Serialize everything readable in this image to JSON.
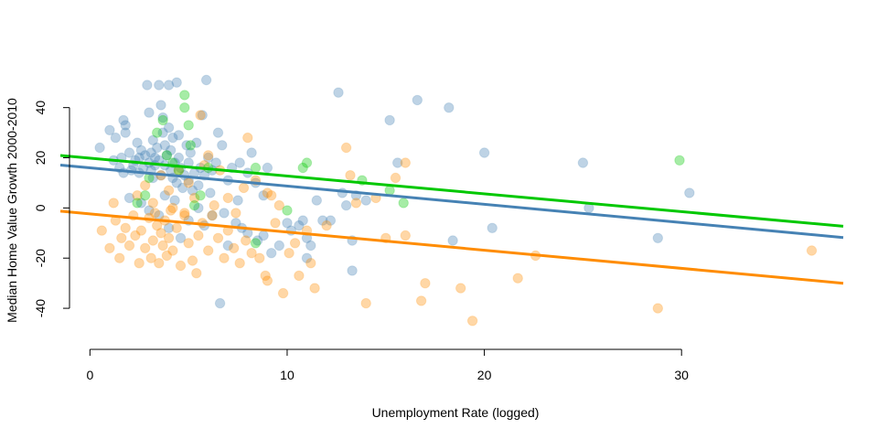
{
  "chart_data": {
    "type": "scatter",
    "title": "",
    "xlabel": "Unemployment Rate (logged)",
    "ylabel": "Median Home Value Growth 2000-2010",
    "xlim": [
      -1.5,
      38.2
    ],
    "ylim": [
      -52,
      53
    ],
    "xticks": [
      0,
      10,
      20,
      30
    ],
    "yticks": [
      -40,
      -20,
      0,
      20,
      40
    ],
    "grid": false,
    "legend": "none",
    "series": [
      {
        "color": "#4682b4",
        "marker_alpha": 0.35,
        "points": [
          [
            0.5,
            24
          ],
          [
            1,
            31
          ],
          [
            1.2,
            19
          ],
          [
            1.3,
            28
          ],
          [
            1.5,
            16
          ],
          [
            1.6,
            20
          ],
          [
            1.7,
            14
          ],
          [
            1.7,
            35
          ],
          [
            1.8,
            33
          ],
          [
            1.8,
            30
          ],
          [
            2,
            22
          ],
          [
            2.1,
            15
          ],
          [
            2.2,
            17
          ],
          [
            2.3,
            19
          ],
          [
            2.4,
            26
          ],
          [
            2.5,
            14
          ],
          [
            2.5,
            20
          ],
          [
            2.6,
            23
          ],
          [
            2.7,
            16
          ],
          [
            2.8,
            21
          ],
          [
            2.9,
            49
          ],
          [
            3,
            38
          ],
          [
            3,
            18
          ],
          [
            3.1,
            15
          ],
          [
            3.1,
            22
          ],
          [
            3.2,
            12
          ],
          [
            3.2,
            27
          ],
          [
            3.3,
            20
          ],
          [
            3.3,
            17
          ],
          [
            3.4,
            24
          ],
          [
            3.5,
            49
          ],
          [
            3.5,
            19
          ],
          [
            3.6,
            13
          ],
          [
            3.6,
            41
          ],
          [
            3.7,
            30
          ],
          [
            3.7,
            36
          ],
          [
            3.8,
            25
          ],
          [
            3.8,
            17
          ],
          [
            3.9,
            21
          ],
          [
            4,
            32
          ],
          [
            4,
            49
          ],
          [
            4.1,
            15
          ],
          [
            4.1,
            23
          ],
          [
            4.2,
            12
          ],
          [
            4.2,
            28
          ],
          [
            4.3,
            18
          ],
          [
            4.4,
            50
          ],
          [
            4.4,
            10
          ],
          [
            4.5,
            29
          ],
          [
            4.5,
            20
          ],
          [
            4.6,
            16
          ],
          [
            4.7,
            8
          ],
          [
            4.8,
            13
          ],
          [
            4.9,
            25
          ],
          [
            5,
            11
          ],
          [
            5,
            18
          ],
          [
            5.1,
            22
          ],
          [
            5.2,
            7
          ],
          [
            5.3,
            14
          ],
          [
            5.4,
            26
          ],
          [
            5.5,
            9
          ],
          [
            5.6,
            16
          ],
          [
            5.7,
            37
          ],
          [
            5.8,
            13
          ],
          [
            5.9,
            51
          ],
          [
            6,
            20
          ],
          [
            6.1,
            6
          ],
          [
            6.2,
            15
          ],
          [
            6.4,
            18
          ],
          [
            6.5,
            30
          ],
          [
            6.7,
            25
          ],
          [
            7,
            11
          ],
          [
            7.2,
            16
          ],
          [
            7.5,
            3
          ],
          [
            7.6,
            18
          ],
          [
            8,
            14
          ],
          [
            8.2,
            22
          ],
          [
            8.4,
            10
          ],
          [
            8.8,
            5
          ],
          [
            9,
            16
          ],
          [
            2,
            4
          ],
          [
            2.6,
            2
          ],
          [
            3,
            -1
          ],
          [
            3.5,
            -3
          ],
          [
            3.8,
            5
          ],
          [
            4,
            -8
          ],
          [
            4.3,
            3
          ],
          [
            4.6,
            -12
          ],
          [
            5,
            -5
          ],
          [
            5.5,
            0
          ],
          [
            5.8,
            -7
          ],
          [
            6.2,
            -3
          ],
          [
            6.6,
            -38
          ],
          [
            6.8,
            -2
          ],
          [
            7,
            -15
          ],
          [
            7.4,
            -6
          ],
          [
            7.7,
            -8
          ],
          [
            8,
            -10
          ],
          [
            8.5,
            -13
          ],
          [
            8.8,
            -11
          ],
          [
            9.2,
            -18
          ],
          [
            9.6,
            -15
          ],
          [
            10,
            -6
          ],
          [
            10.2,
            -9
          ],
          [
            10.6,
            -7
          ],
          [
            10.8,
            -5
          ],
          [
            11,
            -12
          ],
          [
            11,
            -20
          ],
          [
            11.2,
            -15
          ],
          [
            11.5,
            3
          ],
          [
            11.8,
            -5
          ],
          [
            12.2,
            -5
          ],
          [
            12.6,
            46
          ],
          [
            12.8,
            6
          ],
          [
            13,
            1
          ],
          [
            13.3,
            -13
          ],
          [
            13.3,
            -25
          ],
          [
            13.5,
            5
          ],
          [
            14,
            3
          ],
          [
            15.2,
            35
          ],
          [
            15.6,
            18
          ],
          [
            16.6,
            43
          ],
          [
            18.2,
            40
          ],
          [
            18.4,
            -13
          ],
          [
            20,
            22
          ],
          [
            20.4,
            -8
          ],
          [
            25,
            18
          ],
          [
            25.3,
            0
          ],
          [
            28.8,
            -12
          ],
          [
            30.4,
            6
          ]
        ]
      },
      {
        "color": "#ff8c00",
        "marker_alpha": 0.35,
        "points": [
          [
            0.6,
            -9
          ],
          [
            1,
            -16
          ],
          [
            1.2,
            2
          ],
          [
            1.3,
            -5
          ],
          [
            1.5,
            -20
          ],
          [
            1.6,
            -12
          ],
          [
            1.8,
            -8
          ],
          [
            2,
            -15
          ],
          [
            2.2,
            -3
          ],
          [
            2.3,
            -11
          ],
          [
            2.5,
            -22
          ],
          [
            2.6,
            -9
          ],
          [
            2.8,
            -16
          ],
          [
            3,
            -4
          ],
          [
            3.1,
            -20
          ],
          [
            3.2,
            -13
          ],
          [
            3.3,
            -2
          ],
          [
            3.4,
            -7
          ],
          [
            3.5,
            -22
          ],
          [
            3.6,
            -10
          ],
          [
            3.7,
            -15
          ],
          [
            3.8,
            -5
          ],
          [
            3.9,
            -19
          ],
          [
            4,
            -12
          ],
          [
            4.1,
            -1
          ],
          [
            4.2,
            -17
          ],
          [
            4.4,
            -8
          ],
          [
            4.6,
            -23
          ],
          [
            4.8,
            -3
          ],
          [
            5,
            -14
          ],
          [
            5.2,
            -21
          ],
          [
            5.4,
            -26
          ],
          [
            5.5,
            -11
          ],
          [
            5.7,
            -6
          ],
          [
            6,
            -17
          ],
          [
            6.2,
            -3
          ],
          [
            6.5,
            -12
          ],
          [
            6.8,
            -20
          ],
          [
            7,
            -9
          ],
          [
            7.3,
            -16
          ],
          [
            7.6,
            -22
          ],
          [
            7.9,
            -13
          ],
          [
            8.2,
            -18
          ],
          [
            8.6,
            -20
          ],
          [
            8.9,
            -27
          ],
          [
            9,
            -29
          ],
          [
            9.4,
            -6
          ],
          [
            9.8,
            -34
          ],
          [
            10.1,
            -18
          ],
          [
            10.4,
            -14
          ],
          [
            10.6,
            -27
          ],
          [
            11.2,
            -22
          ],
          [
            11.4,
            -32
          ],
          [
            12,
            -7
          ],
          [
            2.4,
            5
          ],
          [
            2.8,
            9
          ],
          [
            3.2,
            2
          ],
          [
            3.6,
            13
          ],
          [
            4,
            7
          ],
          [
            4.2,
            0
          ],
          [
            4.5,
            15
          ],
          [
            4.8,
            -2
          ],
          [
            5,
            10
          ],
          [
            5.3,
            4
          ],
          [
            5.6,
            37
          ],
          [
            5.8,
            17
          ],
          [
            6,
            21
          ],
          [
            6.3,
            1
          ],
          [
            6.6,
            15
          ],
          [
            7,
            4
          ],
          [
            7.4,
            -2
          ],
          [
            7.8,
            8
          ],
          [
            8,
            28
          ],
          [
            8.4,
            11
          ],
          [
            9,
            6
          ],
          [
            9.2,
            5
          ],
          [
            9.6,
            1
          ],
          [
            11,
            -9
          ],
          [
            13,
            24
          ],
          [
            13.2,
            13
          ],
          [
            13.5,
            2
          ],
          [
            14,
            -38
          ],
          [
            14.5,
            4
          ],
          [
            15,
            -12
          ],
          [
            15.5,
            12
          ],
          [
            16,
            -11
          ],
          [
            16,
            18
          ],
          [
            16.8,
            -37
          ],
          [
            17,
            -30
          ],
          [
            18.8,
            -32
          ],
          [
            19.4,
            -45
          ],
          [
            21.7,
            -28
          ],
          [
            22.6,
            -19
          ],
          [
            28.8,
            -40
          ],
          [
            36.6,
            -17
          ]
        ]
      },
      {
        "color": "#00c800",
        "marker_alpha": 0.35,
        "points": [
          [
            2.4,
            2
          ],
          [
            2.8,
            5
          ],
          [
            3,
            12
          ],
          [
            3.4,
            30
          ],
          [
            3.7,
            35
          ],
          [
            3.9,
            21
          ],
          [
            4.2,
            18
          ],
          [
            4.5,
            15
          ],
          [
            4.8,
            45
          ],
          [
            4.8,
            40
          ],
          [
            5,
            33
          ],
          [
            5.1,
            25
          ],
          [
            5.3,
            1
          ],
          [
            5.6,
            5
          ],
          [
            6,
            16
          ],
          [
            8.4,
            16
          ],
          [
            8.4,
            -14
          ],
          [
            10,
            -1
          ],
          [
            10.8,
            16
          ],
          [
            11,
            18
          ],
          [
            13.8,
            11
          ],
          [
            15.2,
            7
          ],
          [
            15.9,
            2
          ],
          [
            29.9,
            19
          ]
        ]
      }
    ],
    "trend_lines": [
      {
        "color": "#00c800",
        "x": [
          -1.5,
          38.2
        ],
        "y": [
          20.9,
          -7.3
        ]
      },
      {
        "color": "#4682b4",
        "x": [
          -1.5,
          38.2
        ],
        "y": [
          17.1,
          -11.8
        ]
      },
      {
        "color": "#ff8c00",
        "x": [
          -1.5,
          38.2
        ],
        "y": [
          -1.3,
          -30.0
        ]
      }
    ]
  }
}
